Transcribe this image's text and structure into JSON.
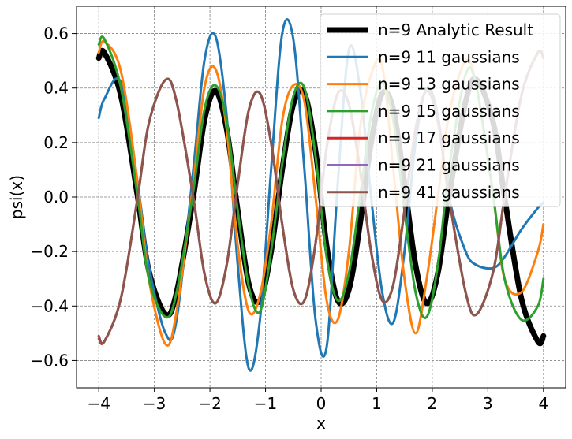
{
  "chart_data": {
    "type": "line",
    "title": "",
    "xlabel": "x",
    "ylabel": "psi(x)",
    "xlim": [
      -4.4,
      4.4
    ],
    "ylim": [
      -0.7,
      0.7
    ],
    "xticks": [
      -4,
      -3,
      -2,
      -1,
      0,
      1,
      2,
      3,
      4
    ],
    "xtick_labels": [
      "−4",
      "−3",
      "−2",
      "−1",
      "0",
      "1",
      "2",
      "3",
      "4"
    ],
    "yticks": [
      -0.6,
      -0.4,
      -0.2,
      0.0,
      0.2,
      0.4,
      0.6
    ],
    "ytick_labels": [
      "−0.6",
      "−0.4",
      "−0.2",
      "0.0",
      "0.2",
      "0.4",
      "0.6"
    ],
    "grid": true,
    "legend_position": "top-right",
    "series": [
      {
        "name": "n=9 Analytic Result",
        "color": "#000000",
        "x": [
          -4.0,
          -3.9,
          -3.6,
          -3.3,
          -3.1,
          -2.8,
          -2.6,
          -2.3,
          -2.1,
          -1.9,
          -1.7,
          -1.5,
          -1.3,
          -1.1,
          -0.9,
          -0.7,
          -0.5,
          -0.3,
          -0.1,
          0.1,
          0.3,
          0.5,
          0.7,
          0.9,
          1.1,
          1.3,
          1.5,
          1.7,
          1.9,
          2.1,
          2.3,
          2.6,
          2.8,
          3.1,
          3.3,
          3.6,
          3.9,
          4.0
        ],
        "y": [
          0.51,
          0.53,
          0.37,
          0.0,
          -0.27,
          -0.43,
          -0.35,
          0.0,
          0.28,
          0.39,
          0.25,
          -0.05,
          -0.32,
          -0.38,
          -0.2,
          0.1,
          0.34,
          0.38,
          0.17,
          -0.18,
          -0.38,
          -0.34,
          -0.1,
          0.2,
          0.38,
          0.32,
          0.05,
          -0.25,
          -0.39,
          -0.28,
          0.0,
          0.35,
          0.43,
          0.27,
          0.0,
          -0.37,
          -0.53,
          -0.51
        ]
      },
      {
        "name": "n=9 11 gaussians",
        "color": "#1f77b4",
        "x": [
          -4.0,
          -3.9,
          -3.6,
          -3.3,
          -3.1,
          -2.8,
          -2.6,
          -2.3,
          -2.1,
          -1.9,
          -1.7,
          -1.5,
          -1.3,
          -1.1,
          -0.9,
          -0.7,
          -0.5,
          -0.3,
          -0.1,
          0.1,
          0.3,
          0.5,
          0.7,
          0.9,
          1.1,
          1.3,
          1.5,
          1.7,
          1.9,
          2.1,
          2.3,
          2.6,
          2.8,
          3.1,
          3.3,
          3.6,
          3.9,
          4.0
        ],
        "y": [
          0.29,
          0.36,
          0.42,
          0.05,
          -0.25,
          -0.5,
          -0.45,
          0.1,
          0.5,
          0.59,
          0.3,
          -0.25,
          -0.63,
          -0.45,
          0.1,
          0.6,
          0.58,
          0.1,
          -0.45,
          -0.55,
          0.05,
          0.54,
          0.4,
          0.0,
          -0.35,
          -0.46,
          -0.2,
          0.2,
          0.4,
          0.3,
          0.0,
          -0.2,
          -0.25,
          -0.26,
          -0.22,
          -0.12,
          -0.04,
          -0.02
        ]
      },
      {
        "name": "n=9 13 gaussians",
        "color": "#ff7f0e",
        "x": [
          -4.0,
          -3.9,
          -3.6,
          -3.3,
          -3.1,
          -2.8,
          -2.6,
          -2.3,
          -2.1,
          -1.9,
          -1.7,
          -1.5,
          -1.3,
          -1.1,
          -0.9,
          -0.7,
          -0.5,
          -0.3,
          -0.1,
          0.1,
          0.3,
          0.5,
          0.7,
          0.9,
          1.1,
          1.3,
          1.5,
          1.7,
          1.9,
          2.1,
          2.3,
          2.6,
          2.8,
          3.1,
          3.3,
          3.6,
          3.9,
          4.0
        ],
        "y": [
          0.53,
          0.57,
          0.46,
          0.05,
          -0.3,
          -0.54,
          -0.42,
          0.05,
          0.4,
          0.47,
          0.25,
          -0.18,
          -0.42,
          -0.36,
          -0.1,
          0.28,
          0.41,
          0.35,
          0.0,
          -0.38,
          -0.45,
          -0.2,
          0.25,
          0.45,
          0.48,
          0.1,
          -0.3,
          -0.5,
          -0.3,
          0.0,
          0.3,
          0.5,
          0.4,
          0.0,
          -0.3,
          -0.35,
          -0.2,
          -0.1
        ]
      },
      {
        "name": "n=9 15 gaussians",
        "color": "#2ca02c",
        "x": [
          -4.0,
          -3.9,
          -3.6,
          -3.3,
          -3.1,
          -2.8,
          -2.6,
          -2.3,
          -2.1,
          -1.9,
          -1.7,
          -1.5,
          -1.3,
          -1.1,
          -0.9,
          -0.7,
          -0.5,
          -0.3,
          -0.1,
          0.1,
          0.3,
          0.5,
          0.7,
          0.9,
          1.1,
          1.3,
          1.5,
          1.7,
          1.9,
          2.1,
          2.3,
          2.6,
          2.8,
          3.1,
          3.3,
          3.6,
          3.9,
          4.0
        ],
        "y": [
          0.56,
          0.58,
          0.4,
          0.0,
          -0.3,
          -0.44,
          -0.35,
          0.02,
          0.32,
          0.41,
          0.28,
          -0.05,
          -0.33,
          -0.42,
          -0.2,
          0.12,
          0.37,
          0.4,
          0.15,
          -0.22,
          -0.38,
          -0.28,
          0.0,
          0.3,
          0.42,
          0.28,
          -0.05,
          -0.35,
          -0.44,
          -0.25,
          0.1,
          0.45,
          0.4,
          0.0,
          -0.3,
          -0.45,
          -0.4,
          -0.3
        ]
      },
      {
        "name": "n=9 17 gaussians",
        "color": "#d62728",
        "x": [
          -4.0,
          -3.9,
          -3.6,
          -3.3,
          -3.1,
          -2.8,
          -2.6,
          -2.3,
          -2.1,
          -1.9,
          -1.7,
          -1.5,
          -1.3,
          -1.1,
          -0.9,
          -0.7,
          -0.5,
          -0.3,
          -0.1,
          0.1,
          0.3,
          0.5,
          0.7,
          0.9,
          1.1,
          1.3,
          1.5,
          1.7,
          1.9,
          2.1,
          2.3,
          2.6,
          2.8,
          3.1,
          3.3,
          3.6,
          3.9,
          4.0
        ],
        "y": [
          -0.52,
          -0.53,
          -0.37,
          0.0,
          0.27,
          0.43,
          0.35,
          0.0,
          -0.28,
          -0.39,
          -0.25,
          0.05,
          0.32,
          0.38,
          0.2,
          -0.1,
          -0.34,
          -0.38,
          -0.17,
          0.18,
          0.38,
          0.34,
          0.1,
          -0.2,
          -0.38,
          -0.32,
          -0.05,
          0.25,
          0.39,
          0.28,
          0.0,
          -0.35,
          -0.43,
          -0.27,
          0.0,
          0.37,
          0.53,
          0.51
        ]
      },
      {
        "name": "n=9 21 gaussians",
        "color": "#9467bd",
        "x": [
          -4.0,
          -3.9,
          -3.6,
          -3.3,
          -3.1,
          -2.8,
          -2.6,
          -2.3,
          -2.1,
          -1.9,
          -1.7,
          -1.5,
          -1.3,
          -1.1,
          -0.9,
          -0.7,
          -0.5,
          -0.3,
          -0.1,
          0.1,
          0.3,
          0.5,
          0.7,
          0.9,
          1.1,
          1.3,
          1.5,
          1.7,
          1.9,
          2.1,
          2.3,
          2.6,
          2.8,
          3.1,
          3.3,
          3.6,
          3.9,
          4.0
        ],
        "y": [
          -0.51,
          -0.53,
          -0.37,
          0.0,
          0.27,
          0.43,
          0.35,
          0.0,
          -0.28,
          -0.39,
          -0.25,
          0.05,
          0.32,
          0.38,
          0.2,
          -0.1,
          -0.34,
          -0.38,
          -0.17,
          0.18,
          0.38,
          0.34,
          0.1,
          -0.2,
          -0.38,
          -0.32,
          -0.05,
          0.25,
          0.39,
          0.28,
          0.0,
          -0.35,
          -0.43,
          -0.27,
          0.0,
          0.37,
          0.53,
          0.51
        ]
      },
      {
        "name": "n=9 41 gaussians",
        "color": "#8c564b",
        "x": [
          -4.0,
          -3.9,
          -3.6,
          -3.3,
          -3.1,
          -2.8,
          -2.6,
          -2.3,
          -2.1,
          -1.9,
          -1.7,
          -1.5,
          -1.3,
          -1.1,
          -0.9,
          -0.7,
          -0.5,
          -0.3,
          -0.1,
          0.1,
          0.3,
          0.5,
          0.7,
          0.9,
          1.1,
          1.3,
          1.5,
          1.7,
          1.9,
          2.1,
          2.3,
          2.6,
          2.8,
          3.1,
          3.3,
          3.6,
          3.9,
          4.0
        ],
        "y": [
          -0.51,
          -0.53,
          -0.37,
          0.0,
          0.27,
          0.43,
          0.35,
          0.0,
          -0.28,
          -0.39,
          -0.25,
          0.05,
          0.32,
          0.38,
          0.2,
          -0.1,
          -0.34,
          -0.38,
          -0.17,
          0.18,
          0.38,
          0.34,
          0.1,
          -0.2,
          -0.38,
          -0.32,
          -0.05,
          0.25,
          0.39,
          0.28,
          0.0,
          -0.35,
          -0.43,
          -0.27,
          0.0,
          0.37,
          0.53,
          0.51
        ]
      }
    ]
  }
}
